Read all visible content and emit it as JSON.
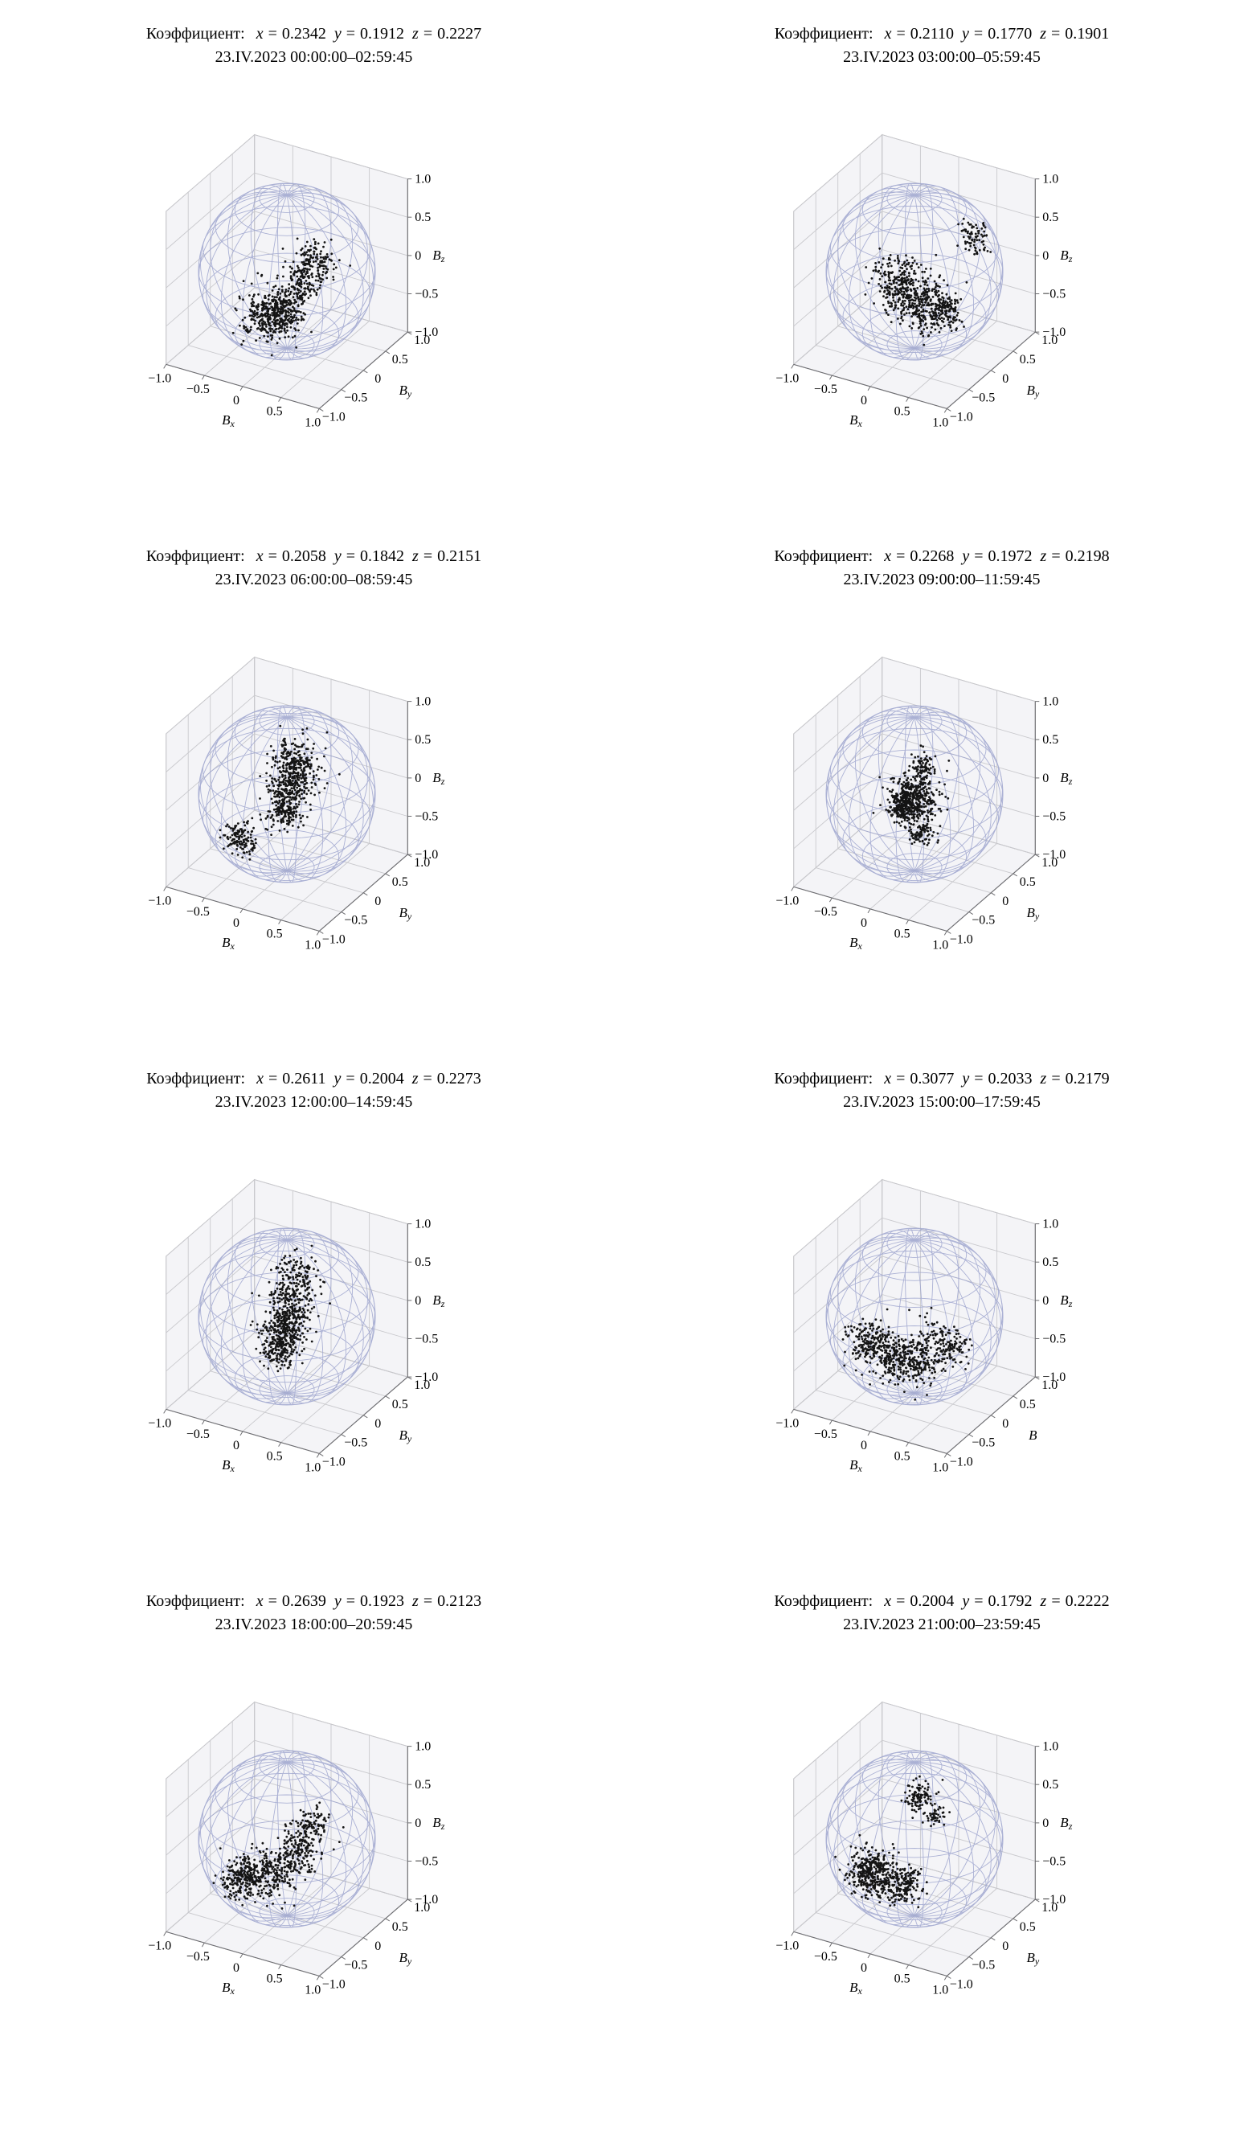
{
  "strings": {
    "coef_label": "Коэффициент:",
    "var_x": "x",
    "var_y": "y",
    "var_z": "z",
    "eq": "="
  },
  "style": {
    "background": "#ffffff",
    "text_color": "#000000",
    "sphere_wire_color": "#9fa6cf",
    "point_color": "#141414",
    "pane_fill": "#f4f4f7",
    "grid_line_color": "#c9c9cd",
    "box_edge_color": "#b4b4b8",
    "axis_line_color": "#6e6e72"
  },
  "axes": {
    "tick_labels": [
      "−1.0",
      "−0.5",
      "0",
      "0.5",
      "1.0"
    ],
    "tick_values": [
      -1,
      -0.5,
      0,
      0.5,
      1
    ],
    "range": [
      -1,
      1
    ],
    "grid": true,
    "view": {
      "azim_deg": -60,
      "elev_deg": 30
    }
  },
  "chart_data": [
    {
      "type": "scatter",
      "projection": "3d-sphere-wireframe",
      "coef": {
        "x": "0.2342",
        "y": "0.1912",
        "z": "0.2227"
      },
      "datetime": "23.IV.2023 00:00:00–02:59:45",
      "xlabel": {
        "base": "B",
        "sub": "x"
      },
      "ylabel": {
        "base": "B",
        "sub": "y"
      },
      "zlabel": {
        "base": "B",
        "sub": "z"
      },
      "axis_range": [
        -1,
        1
      ],
      "clusters": [
        {
          "u": -0.2,
          "v": -0.5,
          "spread": 0.15,
          "n": 300
        },
        {
          "u": -0.02,
          "v": -0.42,
          "spread": 0.11,
          "n": 160
        },
        {
          "u": 0.17,
          "v": -0.12,
          "spread": 0.1,
          "n": 110
        },
        {
          "u": 0.3,
          "v": 0.1,
          "spread": 0.12,
          "n": 150
        }
      ]
    },
    {
      "type": "scatter",
      "projection": "3d-sphere-wireframe",
      "coef": {
        "x": "0.2110",
        "y": "0.1770",
        "z": "0.1901"
      },
      "datetime": "23.IV.2023 03:00:00–05:59:45",
      "xlabel": {
        "base": "B",
        "sub": "x"
      },
      "ylabel": {
        "base": "B",
        "sub": "y"
      },
      "zlabel": {
        "base": "B",
        "sub": "z"
      },
      "axis_range": [
        -1,
        1
      ],
      "clusters": [
        {
          "u": -0.12,
          "v": -0.15,
          "spread": 0.16,
          "n": 300
        },
        {
          "u": 0.12,
          "v": -0.4,
          "spread": 0.14,
          "n": 220
        },
        {
          "u": 0.35,
          "v": -0.45,
          "spread": 0.1,
          "n": 120
        },
        {
          "u": 0.68,
          "v": 0.38,
          "spread": 0.1,
          "n": 80
        }
      ]
    },
    {
      "type": "scatter",
      "projection": "3d-sphere-wireframe",
      "coef": {
        "x": "0.2058",
        "y": "0.1842",
        "z": "0.2151"
      },
      "datetime": "23.IV.2023 06:00:00–08:59:45",
      "xlabel": {
        "base": "B",
        "sub": "x"
      },
      "ylabel": {
        "base": "B",
        "sub": "y"
      },
      "zlabel": {
        "base": "B",
        "sub": "z"
      },
      "axis_range": [
        -1,
        1
      ],
      "clusters": [
        {
          "u": 0.1,
          "v": 0.33,
          "spread": 0.14,
          "n": 250
        },
        {
          "u": 0.03,
          "v": 0.06,
          "spread": 0.12,
          "n": 190
        },
        {
          "u": -0.02,
          "v": -0.2,
          "spread": 0.1,
          "n": 150
        },
        {
          "u": -0.52,
          "v": -0.5,
          "spread": 0.1,
          "n": 130
        }
      ]
    },
    {
      "type": "scatter",
      "projection": "3d-sphere-wireframe",
      "coef": {
        "x": "0.2268",
        "y": "0.1972",
        "z": "0.2198"
      },
      "datetime": "23.IV.2023 09:00:00–11:59:45",
      "xlabel": {
        "base": "B",
        "sub": "x"
      },
      "ylabel": {
        "base": "B",
        "sub": "y"
      },
      "zlabel": {
        "base": "B",
        "sub": "z"
      },
      "axis_range": [
        -1,
        1
      ],
      "clusters": [
        {
          "u": 0.0,
          "v": -0.03,
          "spread": 0.14,
          "n": 400
        },
        {
          "u": -0.13,
          "v": -0.15,
          "spread": 0.09,
          "n": 160
        },
        {
          "u": 0.1,
          "v": 0.32,
          "spread": 0.08,
          "n": 80
        },
        {
          "u": 0.06,
          "v": -0.45,
          "spread": 0.08,
          "n": 80
        }
      ]
    },
    {
      "type": "scatter",
      "projection": "3d-sphere-wireframe",
      "coef": {
        "x": "0.2611",
        "y": "0.2004",
        "z": "0.2273"
      },
      "datetime": "23.IV.2023 12:00:00–14:59:45",
      "xlabel": {
        "base": "B",
        "sub": "x"
      },
      "ylabel": {
        "base": "B",
        "sub": "y"
      },
      "zlabel": {
        "base": "B",
        "sub": "z"
      },
      "axis_range": [
        -1,
        1
      ],
      "clusters": [
        {
          "u": 0.12,
          "v": 0.42,
          "spread": 0.15,
          "n": 170
        },
        {
          "u": 0.03,
          "v": 0.12,
          "spread": 0.12,
          "n": 150
        },
        {
          "u": -0.03,
          "v": -0.15,
          "spread": 0.12,
          "n": 250
        },
        {
          "u": -0.08,
          "v": -0.38,
          "spread": 0.1,
          "n": 150
        }
      ]
    },
    {
      "type": "scatter",
      "projection": "3d-sphere-wireframe",
      "coef": {
        "x": "0.3077",
        "y": "0.2033",
        "z": "0.2179"
      },
      "datetime": "23.IV.2023 15:00:00–17:59:45",
      "xlabel": {
        "base": "B",
        "sub": "x"
      },
      "ylabel": {
        "base": "B",
        "sub": ""
      },
      "zlabel": {
        "base": "B",
        "sub": "z"
      },
      "axis_range": [
        -1,
        1
      ],
      "clusters": [
        {
          "u": -0.52,
          "v": -0.28,
          "spread": 0.12,
          "n": 180
        },
        {
          "u": -0.25,
          "v": -0.45,
          "spread": 0.12,
          "n": 200
        },
        {
          "u": 0.05,
          "v": -0.5,
          "spread": 0.13,
          "n": 180
        },
        {
          "u": 0.4,
          "v": -0.35,
          "spread": 0.12,
          "n": 120
        },
        {
          "u": 0.18,
          "v": -0.18,
          "spread": 0.1,
          "n": 40
        }
      ]
    },
    {
      "type": "scatter",
      "projection": "3d-sphere-wireframe",
      "coef": {
        "x": "0.2639",
        "y": "0.1923",
        "z": "0.2123"
      },
      "datetime": "23.IV.2023 18:00:00–20:59:45",
      "xlabel": {
        "base": "B",
        "sub": "x"
      },
      "ylabel": {
        "base": "B",
        "sub": "y"
      },
      "zlabel": {
        "base": "B",
        "sub": "z"
      },
      "axis_range": [
        -1,
        1
      ],
      "clusters": [
        {
          "u": -0.52,
          "v": -0.45,
          "spread": 0.12,
          "n": 220
        },
        {
          "u": -0.18,
          "v": -0.38,
          "spread": 0.14,
          "n": 240
        },
        {
          "u": 0.12,
          "v": -0.12,
          "spread": 0.12,
          "n": 160
        },
        {
          "u": 0.3,
          "v": 0.15,
          "spread": 0.1,
          "n": 100
        }
      ]
    },
    {
      "type": "scatter",
      "projection": "3d-sphere-wireframe",
      "coef": {
        "x": "0.2004",
        "y": "0.1792",
        "z": "0.2222"
      },
      "datetime": "23.IV.2023 21:00:00–23:59:45",
      "xlabel": {
        "base": "B",
        "sub": "x"
      },
      "ylabel": {
        "base": "B",
        "sub": "y"
      },
      "zlabel": {
        "base": "B",
        "sub": "z"
      },
      "axis_range": [
        -1,
        1
      ],
      "clusters": [
        {
          "u": -0.48,
          "v": -0.38,
          "spread": 0.13,
          "n": 380
        },
        {
          "u": -0.12,
          "v": -0.52,
          "spread": 0.11,
          "n": 190
        },
        {
          "u": 0.08,
          "v": 0.46,
          "spread": 0.09,
          "n": 110
        },
        {
          "u": 0.24,
          "v": 0.27,
          "spread": 0.06,
          "n": 40
        }
      ]
    }
  ]
}
